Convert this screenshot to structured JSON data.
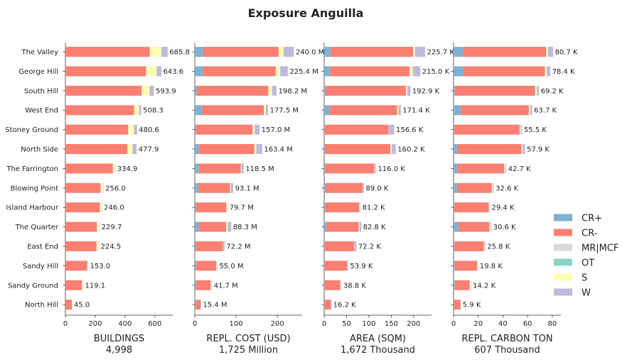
{
  "title": "Exposure Anguilla",
  "colors": {
    "CR+": "#80b1d3",
    "CR-": "#fb8072",
    "MR|MCF": "#d9d9d9",
    "OT": "#8dd3c7",
    "S": "#ffffb3",
    "W": "#bebada"
  },
  "legend": [
    "CR+",
    "CR-",
    "MR|MCF",
    "OT",
    "S",
    "W"
  ],
  "chart_data": {
    "type": "bar",
    "orientation": "horizontal",
    "stacked": true,
    "title": "Exposure Anguilla",
    "categories": [
      "The Valley",
      "George Hill",
      "South Hill",
      "West End",
      "Stoney Ground",
      "North Side",
      "The Farrington",
      "Blowing Point",
      "Island Harbour",
      "The Quarter",
      "East End",
      "Sandy Hill",
      "Sandy Ground",
      "North Hill"
    ],
    "series_names": [
      "CR+",
      "CR-",
      "MR|MCF",
      "OT",
      "S",
      "W"
    ],
    "panels": [
      {
        "xlabel": "BUILDINGS",
        "total_label": "4,998",
        "xlim": [
          0,
          720
        ],
        "xticks": [
          0,
          200,
          400,
          600
        ],
        "xtick_labels": [
          "0",
          "200",
          "400",
          "600"
        ],
        "totals": [
          "685.8",
          "643.6",
          "593.9",
          "508.3",
          "480.6",
          "477.9",
          "334.9",
          "256.0",
          "246.0",
          "229.7",
          "224.5",
          "153.0",
          "119.1",
          "45.0"
        ],
        "values": [
          [
            0,
            565,
            4,
            0,
            75,
            41.8
          ],
          [
            0,
            540,
            4,
            0,
            68,
            31.6
          ],
          [
            0,
            510,
            5,
            0,
            50,
            28.9
          ],
          [
            0,
            460,
            4,
            0,
            30,
            14.3
          ],
          [
            0,
            420,
            5,
            0,
            35,
            20.6
          ],
          [
            0,
            415,
            5,
            0,
            30,
            27.9
          ],
          [
            0,
            318,
            4,
            0,
            10,
            2.9
          ],
          [
            0,
            235,
            5,
            0,
            14,
            2.0
          ],
          [
            0,
            230,
            5,
            0,
            10,
            1.0
          ],
          [
            0,
            210,
            4,
            0,
            14,
            1.7
          ],
          [
            0,
            208,
            4,
            0,
            11,
            1.5
          ],
          [
            0,
            146,
            4,
            0,
            3,
            0
          ],
          [
            0,
            110,
            4,
            0,
            5,
            0.1
          ],
          [
            0,
            43,
            2,
            0,
            0,
            0
          ]
        ]
      },
      {
        "xlabel": "REPL. COST (USD)",
        "total_label": "1,725 Million",
        "xlim": [
          0,
          260
        ],
        "xticks": [
          0,
          100,
          200
        ],
        "xtick_labels": [
          "0",
          "100",
          "200"
        ],
        "totals": [
          "240.0 M",
          "225.4 M",
          "198.2 M",
          "177.5 M",
          "157.0 M",
          "163.4 M",
          "118.5 M",
          "93.1 M",
          "79.7 M",
          "88.3 M",
          "72.2 M",
          "55.0 M",
          "41.7 M",
          "15.4 M"
        ],
        "values": [
          [
            20,
            183,
            1,
            0,
            11,
            25.0
          ],
          [
            20,
            176,
            1,
            0,
            10,
            18.4
          ],
          [
            5,
            173,
            1,
            0,
            8,
            11.2
          ],
          [
            17,
            150,
            1,
            0,
            4,
            5.5
          ],
          [
            2,
            138,
            1,
            0,
            4,
            12.0
          ],
          [
            10,
            134,
            1,
            0,
            4,
            14.4
          ],
          [
            10,
            101,
            1,
            0,
            1,
            5.5
          ],
          [
            8,
            77,
            1,
            0,
            1,
            6.1
          ],
          [
            3,
            73,
            1,
            0,
            2,
            0.7
          ],
          [
            10,
            66,
            1,
            0,
            3,
            8.3
          ],
          [
            2,
            66,
            1,
            0,
            0,
            3.2
          ],
          [
            3,
            49,
            1,
            0,
            1,
            1.0
          ],
          [
            3,
            35,
            1,
            0,
            1,
            1.7
          ],
          [
            2,
            12,
            1,
            0,
            0,
            0.4
          ]
        ]
      },
      {
        "xlabel": "AREA (SQM)",
        "total_label": "1,672 Thousand",
        "xlim": [
          0,
          240
        ],
        "xticks": [
          0,
          50,
          100,
          150,
          200
        ],
        "xtick_labels": [
          "0",
          "50",
          "100",
          "150",
          "200"
        ],
        "totals": [
          "225.7 K",
          "215.0 K",
          "192.9 K",
          "171.4 K",
          "156.6 K",
          "160.2 K",
          "116.0 K",
          "89.0 K",
          "81.2 K",
          "82.8 K",
          "72.2 K",
          "53.9 K",
          "38.8 K",
          "16.2 K"
        ],
        "values": [
          [
            14,
            185,
            1,
            0,
            3,
            22.7
          ],
          [
            13,
            178,
            1,
            0,
            6,
            17.0
          ],
          [
            3,
            180,
            1,
            0,
            2,
            6.9
          ],
          [
            12,
            151,
            1,
            0,
            2,
            5.4
          ],
          [
            1,
            143,
            1,
            0,
            0,
            11.6
          ],
          [
            2,
            146,
            1,
            0,
            2,
            9.2
          ],
          [
            2,
            110,
            1,
            0,
            1,
            2.0
          ],
          [
            3,
            83,
            1,
            0,
            0,
            2.0
          ],
          [
            2,
            76,
            1,
            0,
            1,
            1.2
          ],
          [
            5,
            72,
            1,
            0,
            1,
            3.8
          ],
          [
            1,
            66,
            1,
            0,
            0,
            4.2
          ],
          [
            1,
            50,
            1,
            0,
            0,
            1.9
          ],
          [
            1,
            35,
            1,
            0,
            1,
            0.8
          ],
          [
            1,
            14,
            1,
            0,
            0,
            0.2
          ]
        ]
      },
      {
        "xlabel": "REPL. CARBON TON",
        "total_label": "607 Thousand",
        "xlim": [
          0,
          87
        ],
        "xticks": [
          0,
          20,
          40,
          60,
          80
        ],
        "xtick_labels": [
          "0",
          "20",
          "40",
          "60",
          "80"
        ],
        "totals": [
          "80.7 K",
          "78.4 K",
          "69.2 K",
          "63.7 K",
          "55.5 K",
          "57.9 K",
          "42.7 K",
          "32.6 K",
          "29.4 K",
          "30.6 K",
          "25.8 K",
          "19.8 K",
          "14.2 K",
          "5.9 K"
        ],
        "values": [
          [
            8,
            67,
            0.5,
            0,
            1,
            4.2
          ],
          [
            8,
            66,
            0.5,
            0,
            1,
            2.9
          ],
          [
            1,
            65,
            0.5,
            0,
            1,
            1.7
          ],
          [
            6,
            55,
            0.5,
            0,
            0.5,
            1.7
          ],
          [
            0.5,
            53,
            0.5,
            0,
            0.5,
            1.0
          ],
          [
            3,
            52,
            0.5,
            0,
            0.5,
            1.9
          ],
          [
            3,
            38,
            0.5,
            0,
            0.5,
            0.7
          ],
          [
            3,
            28,
            0.5,
            0,
            0.5,
            0.6
          ],
          [
            0.5,
            28,
            0.5,
            0,
            0.3,
            0.1
          ],
          [
            4,
            25,
            0.5,
            0,
            0.5,
            0.6
          ],
          [
            0.5,
            24,
            0.5,
            0,
            0.3,
            0.5
          ],
          [
            1,
            18,
            0.3,
            0,
            0.2,
            0.3
          ],
          [
            1,
            12,
            0.3,
            0,
            0.5,
            0.4
          ],
          [
            0.3,
            5.3,
            0.2,
            0,
            0,
            0.1
          ]
        ]
      }
    ],
    "legend_position": "center-right",
    "grid": false
  }
}
